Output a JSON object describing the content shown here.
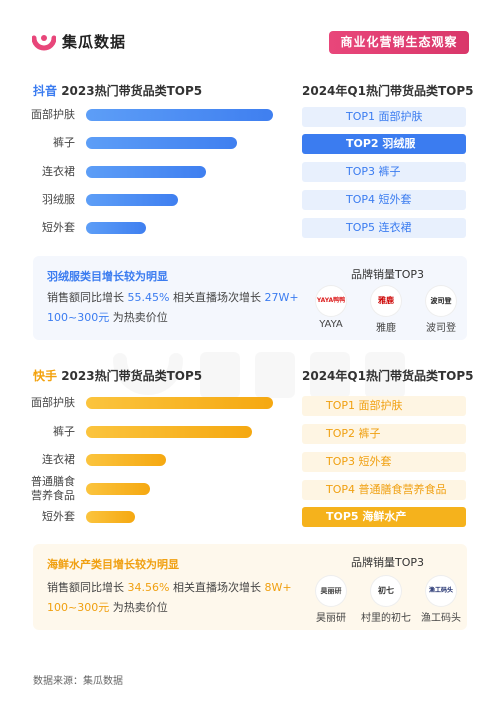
{
  "brand": {
    "name": "集瓜数据",
    "tag": "商业化营销生态观察"
  },
  "douyin": {
    "title_prefix": "抖音",
    "title_suffix": " 2023热门带货品类TOP5",
    "rank_title": "2024年Q1热门带货品类TOP5",
    "categories": [
      "面部护肤",
      "裤子",
      "连衣裙",
      "羽绒服",
      "短外套"
    ],
    "bar_values": [
      1.0,
      0.81,
      0.64,
      0.49,
      0.32
    ],
    "ranks": [
      "TOP1  面部护肤",
      "TOP2  羽绒服",
      "TOP3  裤子",
      "TOP4  短外套",
      "TOP5  连衣裙"
    ],
    "highlight_rank": 2,
    "panel": {
      "title": "羽绒服类目增长较为明显",
      "line1_a": "销售额同比增长 ",
      "line1_v1": "55.45%",
      "line1_b": "  相关直播场次增长 ",
      "line1_v2": "27W+",
      "line2_v": "100~300元",
      "line2_b": " 为热卖价位",
      "brand_head": "品牌销量TOP3",
      "brands": [
        {
          "logo": "YAYA鸭鸭",
          "name": "YAYA"
        },
        {
          "logo": "雅鹿",
          "name": "雅鹿"
        },
        {
          "logo": "波司登",
          "name": "波司登"
        }
      ]
    }
  },
  "kuaishou": {
    "title_prefix": "快手",
    "title_suffix": " 2023热门带货品类TOP5",
    "rank_title": "2024年Q1热门带货品类TOP5",
    "categories": [
      "面部护肤",
      "裤子",
      "连衣裙",
      "普通膳食营养食品",
      "短外套"
    ],
    "category_lines": [
      [
        "面部护肤"
      ],
      [
        "裤子"
      ],
      [
        "连衣裙"
      ],
      [
        "普通膳食",
        "营养食品"
      ],
      [
        "短外套"
      ]
    ],
    "bar_values": [
      1.0,
      0.89,
      0.43,
      0.34,
      0.26
    ],
    "ranks": [
      "TOP1  面部护肤",
      "TOP2  裤子",
      "TOP3  短外套",
      "TOP4  普通膳食营养食品",
      "TOP5  海鲜水产"
    ],
    "highlight_rank": 5,
    "panel": {
      "title": "海鲜水产类目增长较为明显",
      "line1_a": "销售额同比增长 ",
      "line1_v1": "34.56%",
      "line1_b": "  相关直播场次增长 ",
      "line1_v2": "8W+",
      "line2_v": "100~300元",
      "line2_b": " 为热卖价位",
      "brand_head": "品牌销量TOP3",
      "brands": [
        {
          "logo": "昊丽研",
          "name": "昊丽研"
        },
        {
          "logo": "初七",
          "name": "村里的初七"
        },
        {
          "logo": "渔工码头",
          "name": "渔工码头"
        }
      ]
    }
  },
  "colors": {
    "blue": "#3b7cf0",
    "orange": "#f5a811",
    "pink": "#e8467a"
  },
  "footer": "数据来源：集瓜数据"
}
